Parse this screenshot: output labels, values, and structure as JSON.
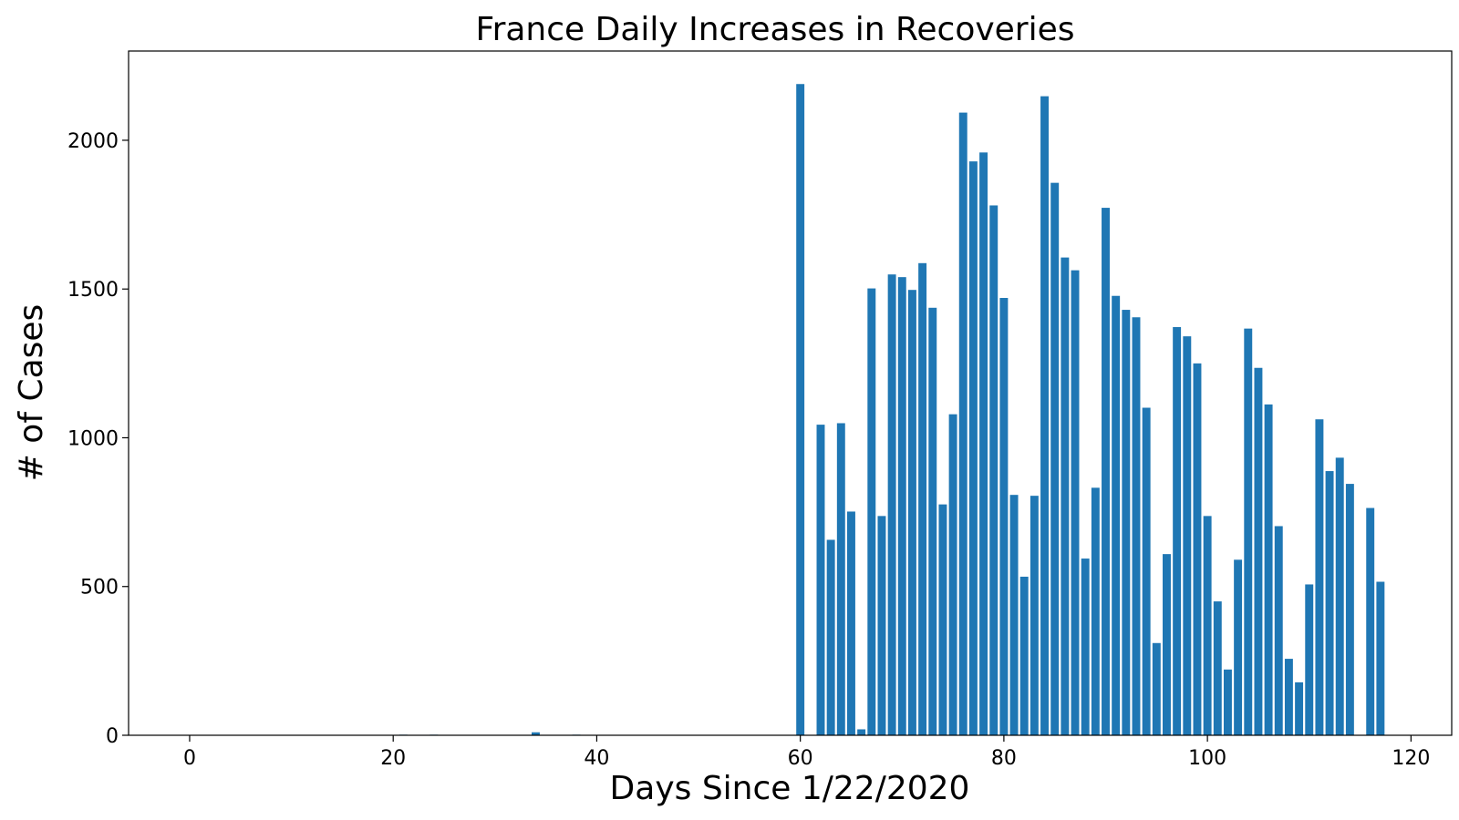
{
  "chart_data": {
    "type": "bar",
    "title": "France Daily Increases in Recoveries",
    "xlabel": "Days Since 1/22/2020",
    "ylabel": "# of Cases",
    "xlim": [
      -6,
      124
    ],
    "ylim": [
      0,
      2300
    ],
    "xticks": [
      0,
      20,
      40,
      60,
      80,
      100,
      120
    ],
    "yticks": [
      0,
      500,
      1000,
      1500,
      2000
    ],
    "bar_color": "#1f77b4",
    "grid": false,
    "x": [
      0,
      1,
      2,
      3,
      4,
      5,
      6,
      7,
      8,
      9,
      10,
      11,
      12,
      13,
      14,
      15,
      16,
      17,
      18,
      19,
      20,
      21,
      22,
      23,
      24,
      25,
      26,
      27,
      28,
      29,
      30,
      31,
      32,
      33,
      34,
      35,
      36,
      37,
      38,
      39,
      40,
      41,
      42,
      43,
      44,
      45,
      46,
      47,
      48,
      49,
      50,
      51,
      52,
      53,
      54,
      55,
      56,
      57,
      58,
      59,
      60,
      61,
      62,
      63,
      64,
      65,
      66,
      67,
      68,
      69,
      70,
      71,
      72,
      73,
      74,
      75,
      76,
      77,
      78,
      79,
      80,
      81,
      82,
      83,
      84,
      85,
      86,
      87,
      88,
      89,
      90,
      91,
      92,
      93,
      94,
      95,
      96,
      97,
      98,
      99,
      100,
      101,
      102,
      103,
      104,
      105,
      106,
      107,
      108,
      109,
      110,
      111,
      112,
      113,
      114,
      115,
      116,
      117
    ],
    "values": [
      0,
      0,
      0,
      0,
      0,
      0,
      0,
      0,
      0,
      0,
      0,
      0,
      0,
      0,
      0,
      0,
      0,
      0,
      0,
      0,
      0,
      2,
      0,
      0,
      2,
      0,
      0,
      0,
      0,
      0,
      0,
      0,
      0,
      0,
      10,
      0,
      0,
      0,
      2,
      0,
      0,
      0,
      0,
      0,
      0,
      0,
      0,
      0,
      0,
      0,
      0,
      0,
      0,
      0,
      0,
      0,
      0,
      0,
      0,
      0,
      2189,
      0,
      1044,
      657,
      1049,
      752,
      20,
      1502,
      737,
      1549,
      1540,
      1497,
      1587,
      1437,
      776,
      1079,
      2093,
      1929,
      1959,
      1781,
      1470,
      808,
      533,
      805,
      2148,
      1857,
      1606,
      1563,
      594,
      832,
      1773,
      1477,
      1430,
      1405,
      1101,
      310,
      609,
      1372,
      1341,
      1250,
      737,
      450,
      221,
      590,
      1367,
      1235,
      1112,
      703,
      257,
      178,
      507,
      1062,
      888,
      933,
      845,
      0,
      764,
      516
    ]
  }
}
